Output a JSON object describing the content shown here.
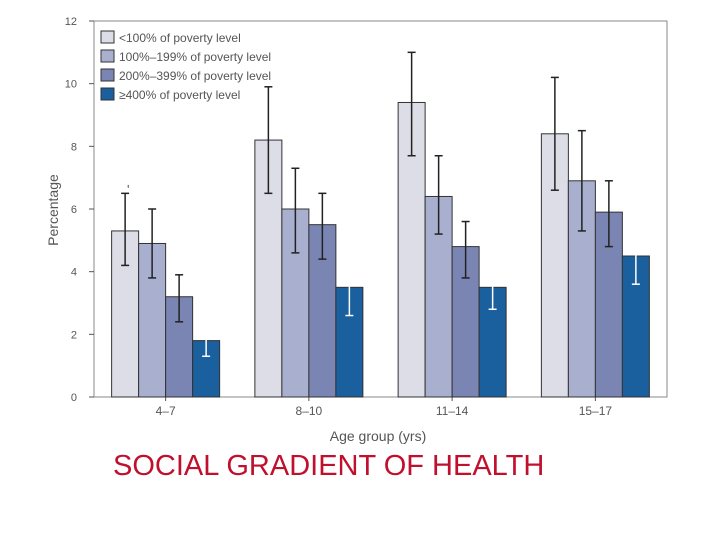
{
  "caption": "SOCIAL GRADIENT OF HEALTH",
  "chart_data": {
    "type": "bar",
    "title": "",
    "xlabel": "Age group (yrs)",
    "ylabel": "Percentage",
    "ylim": [
      0,
      12
    ],
    "yticks": [
      0,
      2,
      4,
      6,
      8,
      10,
      12
    ],
    "grid": false,
    "legend_position": "top-left",
    "categories": [
      "4–7",
      "8–10",
      "11–14",
      "15–17"
    ],
    "series": [
      {
        "name": "<100% of poverty level",
        "color": "#dcdde6",
        "errorbar_color": "#222222",
        "values": [
          5.3,
          8.2,
          9.4,
          8.4
        ],
        "lower": [
          4.2,
          6.5,
          7.7,
          6.6
        ],
        "upper": [
          6.5,
          9.9,
          11.0,
          10.2
        ]
      },
      {
        "name": "100%–199% of poverty level",
        "color": "#a9b0cf",
        "errorbar_color": "#222222",
        "values": [
          4.9,
          6.0,
          6.4,
          6.9
        ],
        "lower": [
          3.8,
          4.6,
          5.2,
          5.3
        ],
        "upper": [
          6.0,
          7.3,
          7.7,
          8.5
        ]
      },
      {
        "name": "200%–399% of poverty level",
        "color": "#7a85b4",
        "errorbar_color": "#222222",
        "values": [
          3.2,
          5.5,
          4.8,
          5.9
        ],
        "lower": [
          2.4,
          4.4,
          3.8,
          4.8
        ],
        "upper": [
          3.9,
          6.5,
          5.6,
          6.9
        ]
      },
      {
        "name": "≥400% of poverty level",
        "color": "#1a5f9e",
        "errorbar_color": "#ffffff",
        "values": [
          1.8,
          3.5,
          3.5,
          4.5
        ],
        "lower": [
          1.3,
          2.6,
          2.8,
          3.6
        ],
        "upper": [
          2.3,
          4.3,
          4.2,
          5.4
        ]
      }
    ],
    "annotations": [
      "'"
    ]
  }
}
